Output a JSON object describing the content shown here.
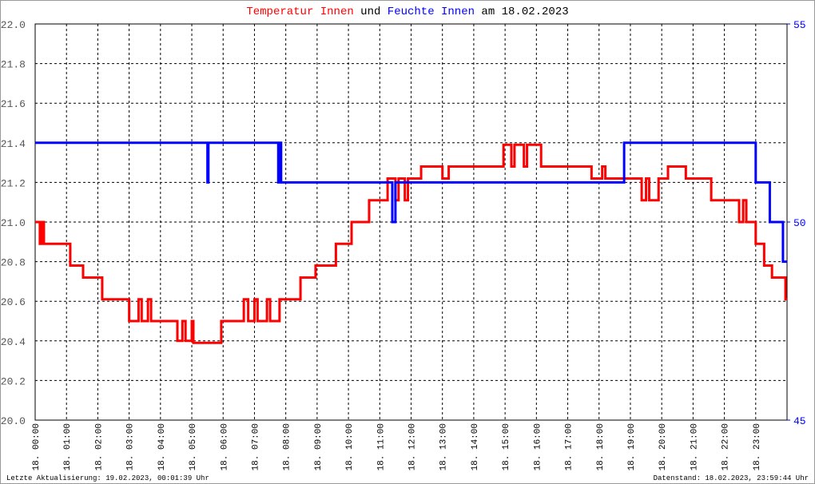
{
  "chart_data": {
    "type": "line",
    "title_middle": "und",
    "title_suffix": "am 18.02.2023",
    "footer_left": "Letzte Aktualisierung: 19.02.2023, 00:01:39 Uhr",
    "footer_right": "Datenstand: 18.02.2023, 23:59:44 Uhr",
    "xlim": [
      0,
      24
    ],
    "xticks": [
      {
        "value": 0,
        "label": "18. 00:00"
      },
      {
        "value": 1,
        "label": "18. 01:00"
      },
      {
        "value": 2,
        "label": "18. 02:00"
      },
      {
        "value": 3,
        "label": "18. 03:00"
      },
      {
        "value": 4,
        "label": "18. 04:00"
      },
      {
        "value": 5,
        "label": "18. 05:00"
      },
      {
        "value": 6,
        "label": "18. 06:00"
      },
      {
        "value": 7,
        "label": "18. 07:00"
      },
      {
        "value": 8,
        "label": "18. 08:00"
      },
      {
        "value": 9,
        "label": "18. 09:00"
      },
      {
        "value": 10,
        "label": "18. 10:00"
      },
      {
        "value": 11,
        "label": "18. 11:00"
      },
      {
        "value": 12,
        "label": "18. 12:00"
      },
      {
        "value": 13,
        "label": "18. 13:00"
      },
      {
        "value": 14,
        "label": "18. 14:00"
      },
      {
        "value": 15,
        "label": "18. 15:00"
      },
      {
        "value": 16,
        "label": "18. 16:00"
      },
      {
        "value": 17,
        "label": "18. 17:00"
      },
      {
        "value": 18,
        "label": "18. 18:00"
      },
      {
        "value": 19,
        "label": "18. 19:00"
      },
      {
        "value": 20,
        "label": "18. 20:00"
      },
      {
        "value": 21,
        "label": "18. 21:00"
      },
      {
        "value": 22,
        "label": "18. 22:00"
      },
      {
        "value": 23,
        "label": "18. 23:00"
      }
    ],
    "ylim": [
      20.0,
      22.0
    ],
    "yticks": [
      {
        "value": 20.0,
        "label": "20.0"
      },
      20.2,
      20.4,
      20.6,
      20.8,
      {
        "value": 21.0,
        "label": "21.0"
      },
      21.2,
      21.4,
      21.6,
      21.8,
      {
        "value": 22.0,
        "label": "22.0"
      }
    ],
    "y2lim": [
      45,
      55
    ],
    "y2ticks": [
      45,
      50,
      55
    ],
    "grid": true,
    "series": [
      {
        "name": "Temperatur Innen",
        "color": "#ff0000",
        "x": [
          0,
          0.15,
          0.15,
          0.22,
          0.22,
          0.28,
          0.28,
          1.12,
          1.12,
          1.53,
          1.53,
          2.14,
          2.14,
          3.0,
          3.0,
          3.3,
          3.3,
          3.4,
          3.4,
          3.6,
          3.6,
          3.7,
          3.7,
          4.54,
          4.54,
          4.7,
          4.7,
          4.8,
          4.8,
          5.0,
          5.0,
          5.05,
          5.05,
          5.94,
          5.94,
          6.66,
          6.66,
          6.8,
          6.8,
          7.0,
          7.0,
          7.1,
          7.1,
          7.4,
          7.4,
          7.5,
          7.5,
          7.8,
          7.8,
          8.47,
          8.47,
          8.95,
          8.95,
          9.6,
          9.6,
          10.1,
          10.1,
          10.66,
          10.66,
          11.25,
          11.25,
          11.5,
          11.5,
          11.6,
          11.6,
          11.8,
          11.8,
          11.9,
          11.9,
          12.32,
          12.32,
          13.0,
          13.0,
          13.2,
          13.2,
          14.95,
          14.95,
          15.2,
          15.2,
          15.3,
          15.3,
          15.6,
          15.6,
          15.7,
          15.7,
          16.15,
          16.15,
          17.76,
          17.76,
          18.1,
          18.1,
          18.2,
          18.2,
          19.36,
          19.36,
          19.5,
          19.5,
          19.6,
          19.6,
          19.9,
          19.9,
          20.2,
          20.2,
          20.77,
          20.77,
          21.58,
          21.58,
          22.47,
          22.47,
          22.6,
          22.6,
          22.7,
          22.7,
          23.0,
          23.0,
          23.27,
          23.27,
          23.52,
          23.52,
          23.95,
          23.95,
          24.0
        ],
        "values": [
          21.0,
          21.0,
          20.89,
          20.89,
          21.0,
          21.0,
          20.89,
          20.89,
          20.78,
          20.78,
          20.72,
          20.72,
          20.61,
          20.61,
          20.5,
          20.5,
          20.61,
          20.61,
          20.5,
          20.5,
          20.61,
          20.61,
          20.5,
          20.5,
          20.4,
          20.4,
          20.5,
          20.5,
          20.4,
          20.4,
          20.5,
          20.5,
          20.39,
          20.39,
          20.5,
          20.5,
          20.61,
          20.61,
          20.5,
          20.5,
          20.61,
          20.61,
          20.5,
          20.5,
          20.61,
          20.61,
          20.5,
          20.5,
          20.61,
          20.61,
          20.72,
          20.72,
          20.78,
          20.78,
          20.89,
          20.89,
          21.0,
          21.0,
          21.11,
          21.11,
          21.22,
          21.22,
          21.11,
          21.11,
          21.22,
          21.22,
          21.11,
          21.11,
          21.22,
          21.22,
          21.28,
          21.28,
          21.22,
          21.22,
          21.28,
          21.28,
          21.39,
          21.39,
          21.28,
          21.28,
          21.39,
          21.39,
          21.28,
          21.28,
          21.39,
          21.39,
          21.28,
          21.28,
          21.22,
          21.22,
          21.28,
          21.28,
          21.22,
          21.22,
          21.11,
          21.11,
          21.22,
          21.22,
          21.11,
          21.11,
          21.22,
          21.22,
          21.28,
          21.28,
          21.22,
          21.22,
          21.11,
          21.11,
          21.0,
          21.0,
          21.11,
          21.11,
          21.0,
          21.0,
          20.89,
          20.89,
          20.78,
          20.78,
          20.72,
          20.72,
          20.61,
          20.61
        ]
      },
      {
        "name": "Feuchte Innen",
        "color": "#0000ff",
        "axis": "y2",
        "x": [
          0,
          5.5,
          5.5,
          5.53,
          5.53,
          7.76,
          7.76,
          7.8,
          7.8,
          7.85,
          7.85,
          11.4,
          11.4,
          11.5,
          11.5,
          18.8,
          18.8,
          23.0,
          23.0,
          23.45,
          23.45,
          23.87,
          23.87,
          24.0
        ],
        "values": [
          52,
          52,
          51,
          51,
          52,
          52,
          51,
          51,
          52,
          52,
          51,
          51,
          50,
          50,
          51,
          51,
          52,
          52,
          51,
          51,
          50,
          50,
          49,
          49
        ]
      }
    ]
  }
}
